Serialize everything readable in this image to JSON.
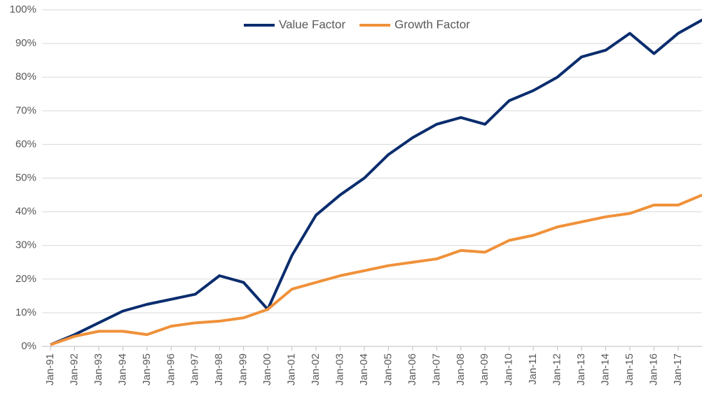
{
  "chart_data": {
    "type": "line",
    "categories": [
      "Jan-91",
      "Jan-92",
      "Jan-93",
      "Jan-94",
      "Jan-95",
      "Jan-96",
      "Jan-97",
      "Jan-98",
      "Jan-99",
      "Jan-00",
      "Jan-01",
      "Jan-02",
      "Jan-03",
      "Jan-04",
      "Jan-05",
      "Jan-06",
      "Jan-07",
      "Jan-08",
      "Jan-09",
      "Jan-10",
      "Jan-11",
      "Jan-12",
      "Jan-13",
      "Jan-14",
      "Jan-15",
      "Jan-16",
      "Jan-17",
      null
    ],
    "series": [
      {
        "name": "Value Factor",
        "color": "#0b2d6e",
        "values": [
          0.5,
          3.5,
          7,
          10.5,
          12.5,
          14,
          15.5,
          21,
          19,
          11,
          27,
          39,
          45,
          50,
          57,
          62,
          66,
          68,
          66,
          73,
          76,
          80,
          86,
          88,
          93,
          87,
          93,
          97
        ]
      },
      {
        "name": "Growth Factor",
        "color": "#f0913a",
        "values": [
          0.5,
          3,
          4.5,
          4.5,
          3.5,
          6,
          7,
          7.5,
          8.5,
          11,
          17,
          19,
          21,
          22.5,
          24,
          25,
          26,
          28.5,
          28,
          31.5,
          33,
          35.5,
          37,
          38.5,
          39.5,
          42,
          42,
          45
        ]
      }
    ],
    "ylim": [
      0,
      100
    ],
    "yticks": [
      {
        "value": 0,
        "label": "0%"
      },
      {
        "value": 10,
        "label": "10%"
      },
      {
        "value": 20,
        "label": "20%"
      },
      {
        "value": 30,
        "label": "30%"
      },
      {
        "value": 40,
        "label": "40%"
      },
      {
        "value": 50,
        "label": "50%"
      },
      {
        "value": 60,
        "label": "60%"
      },
      {
        "value": 70,
        "label": "70%"
      },
      {
        "value": 80,
        "label": "80%"
      },
      {
        "value": 90,
        "label": "90%"
      },
      {
        "value": 100,
        "label": "100%"
      }
    ],
    "grid": true,
    "legend": "top"
  }
}
